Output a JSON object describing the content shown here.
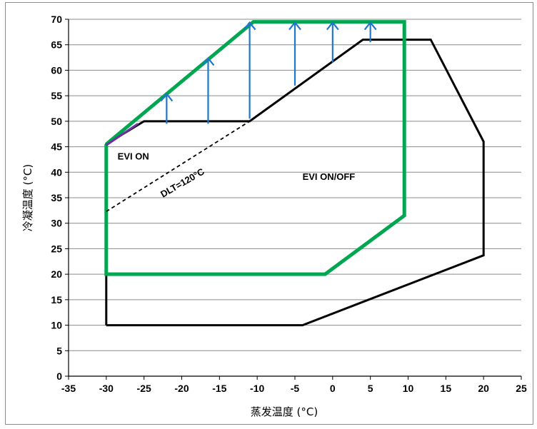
{
  "chart_data": {
    "type": "line",
    "title": "",
    "xlabel": "蒸发温度 (°C)",
    "ylabel": "冷凝温度 (°C)",
    "xlim": [
      -35,
      25
    ],
    "ylim": [
      0,
      70
    ],
    "x_ticks": [
      -35,
      -30,
      -25,
      -20,
      -15,
      -10,
      -5,
      0,
      5,
      10,
      15,
      20,
      25
    ],
    "y_ticks": [
      0,
      5,
      10,
      15,
      20,
      25,
      30,
      35,
      40,
      45,
      50,
      55,
      60,
      65,
      70
    ],
    "grid": "horizontal",
    "legend": "none",
    "series": [
      {
        "color": "#000000",
        "style": "solid",
        "points": [
          [
            -30,
            10
          ],
          [
            -4,
            10
          ],
          [
            20,
            23.7
          ],
          [
            20,
            46
          ],
          [
            13,
            66
          ],
          [
            4,
            66
          ],
          [
            -11,
            50
          ],
          [
            -25,
            50
          ],
          [
            -30,
            45.5
          ],
          [
            -30,
            10
          ]
        ]
      },
      {
        "color": "#00a650",
        "style": "solid",
        "points": [
          [
            -30,
            45.5
          ],
          [
            -10.5,
            69.5
          ],
          [
            9.5,
            69.5
          ],
          [
            9.5,
            31.5
          ],
          [
            -1,
            20
          ],
          [
            -30,
            20
          ],
          [
            -30,
            45.5
          ]
        ]
      },
      {
        "color": "#000000",
        "style": "dashed",
        "points": [
          [
            -30,
            32.3
          ],
          [
            -11,
            50
          ]
        ]
      },
      {
        "color": "#7030a0",
        "style": "solid",
        "points": [
          [
            -30,
            45.3
          ],
          [
            -25.8,
            49.5
          ]
        ]
      }
    ],
    "arrows": {
      "color": "#1f77c8",
      "items": [
        {
          "x": -22,
          "from": 49.5,
          "to": 55.5
        },
        {
          "x": -16.5,
          "from": 49.5,
          "to": 62.5
        },
        {
          "x": -11,
          "from": 50.5,
          "to": 69.5
        },
        {
          "x": -5,
          "from": 57,
          "to": 69.5
        },
        {
          "x": 0,
          "from": 61.5,
          "to": 69.5
        },
        {
          "x": 5,
          "from": 65.5,
          "to": 69.5
        }
      ]
    },
    "annotations": [
      {
        "text": "EVI ON",
        "x": -28.5,
        "y": 42.5,
        "rotate": 0
      },
      {
        "text": "EVI ON/OFF",
        "x": -4,
        "y": 38.5,
        "rotate": 0
      },
      {
        "text": "DLT=120°C",
        "x": -22.5,
        "y": 35,
        "rotate": -30
      }
    ]
  }
}
